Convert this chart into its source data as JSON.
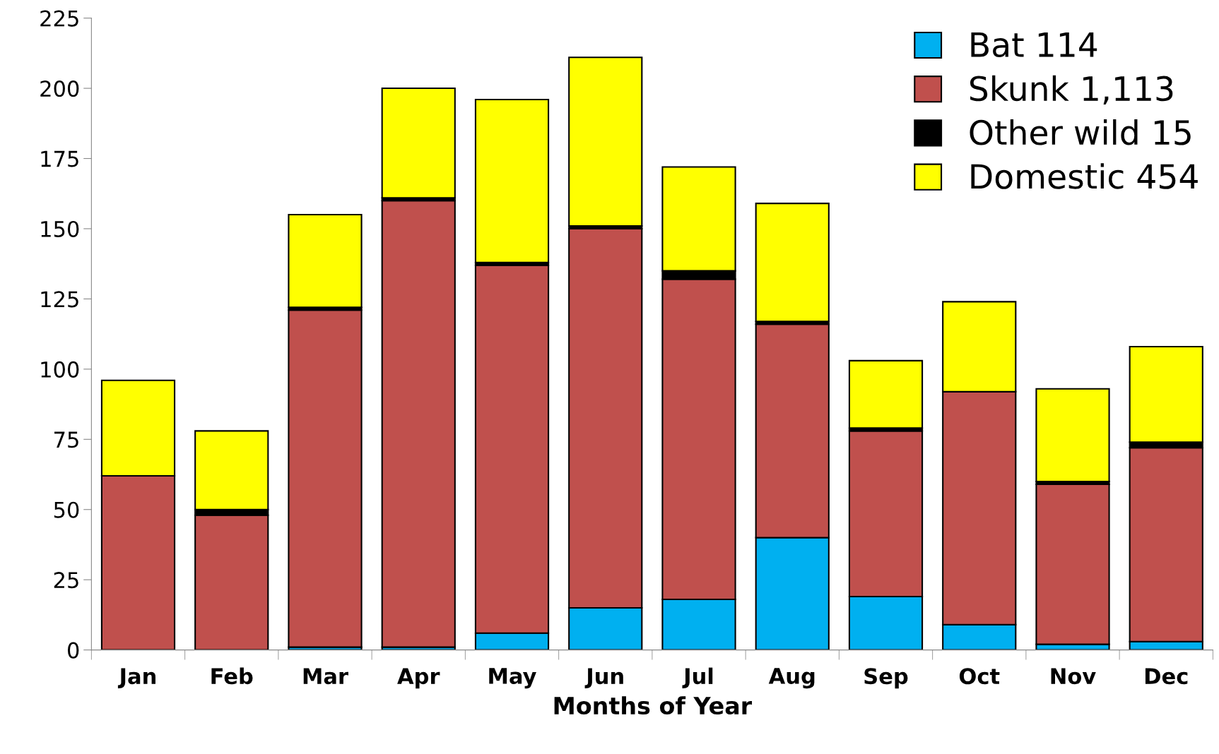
{
  "chart_data": {
    "type": "bar",
    "stacked": true,
    "xlabel": "Months of Year",
    "categories": [
      "Jan",
      "Feb",
      "Mar",
      "Apr",
      "May",
      "Jun",
      "Jul",
      "Aug",
      "Sep",
      "Oct",
      "Nov",
      "Dec"
    ],
    "series": [
      {
        "name": "Bat 114",
        "color": "#00b0f0",
        "values": [
          0,
          0,
          1,
          1,
          6,
          15,
          18,
          40,
          19,
          9,
          2,
          3
        ]
      },
      {
        "name": "Skunk 1,113",
        "color": "#c0504d",
        "values": [
          62,
          48,
          120,
          159,
          131,
          135,
          114,
          76,
          59,
          83,
          57,
          69
        ]
      },
      {
        "name": "Other wild 15",
        "color": "#000000",
        "values": [
          0,
          2,
          1,
          1,
          1,
          1,
          3,
          1,
          1,
          0,
          1,
          2
        ]
      },
      {
        "name": "Domestic 454",
        "color": "#ffff00",
        "values": [
          34,
          28,
          33,
          39,
          58,
          60,
          37,
          42,
          24,
          32,
          33,
          34
        ]
      }
    ],
    "ylim": [
      0,
      225
    ],
    "yticks": [
      0,
      25,
      50,
      75,
      100,
      125,
      150,
      175,
      200,
      225
    ],
    "grid": false,
    "legend": "top right"
  }
}
